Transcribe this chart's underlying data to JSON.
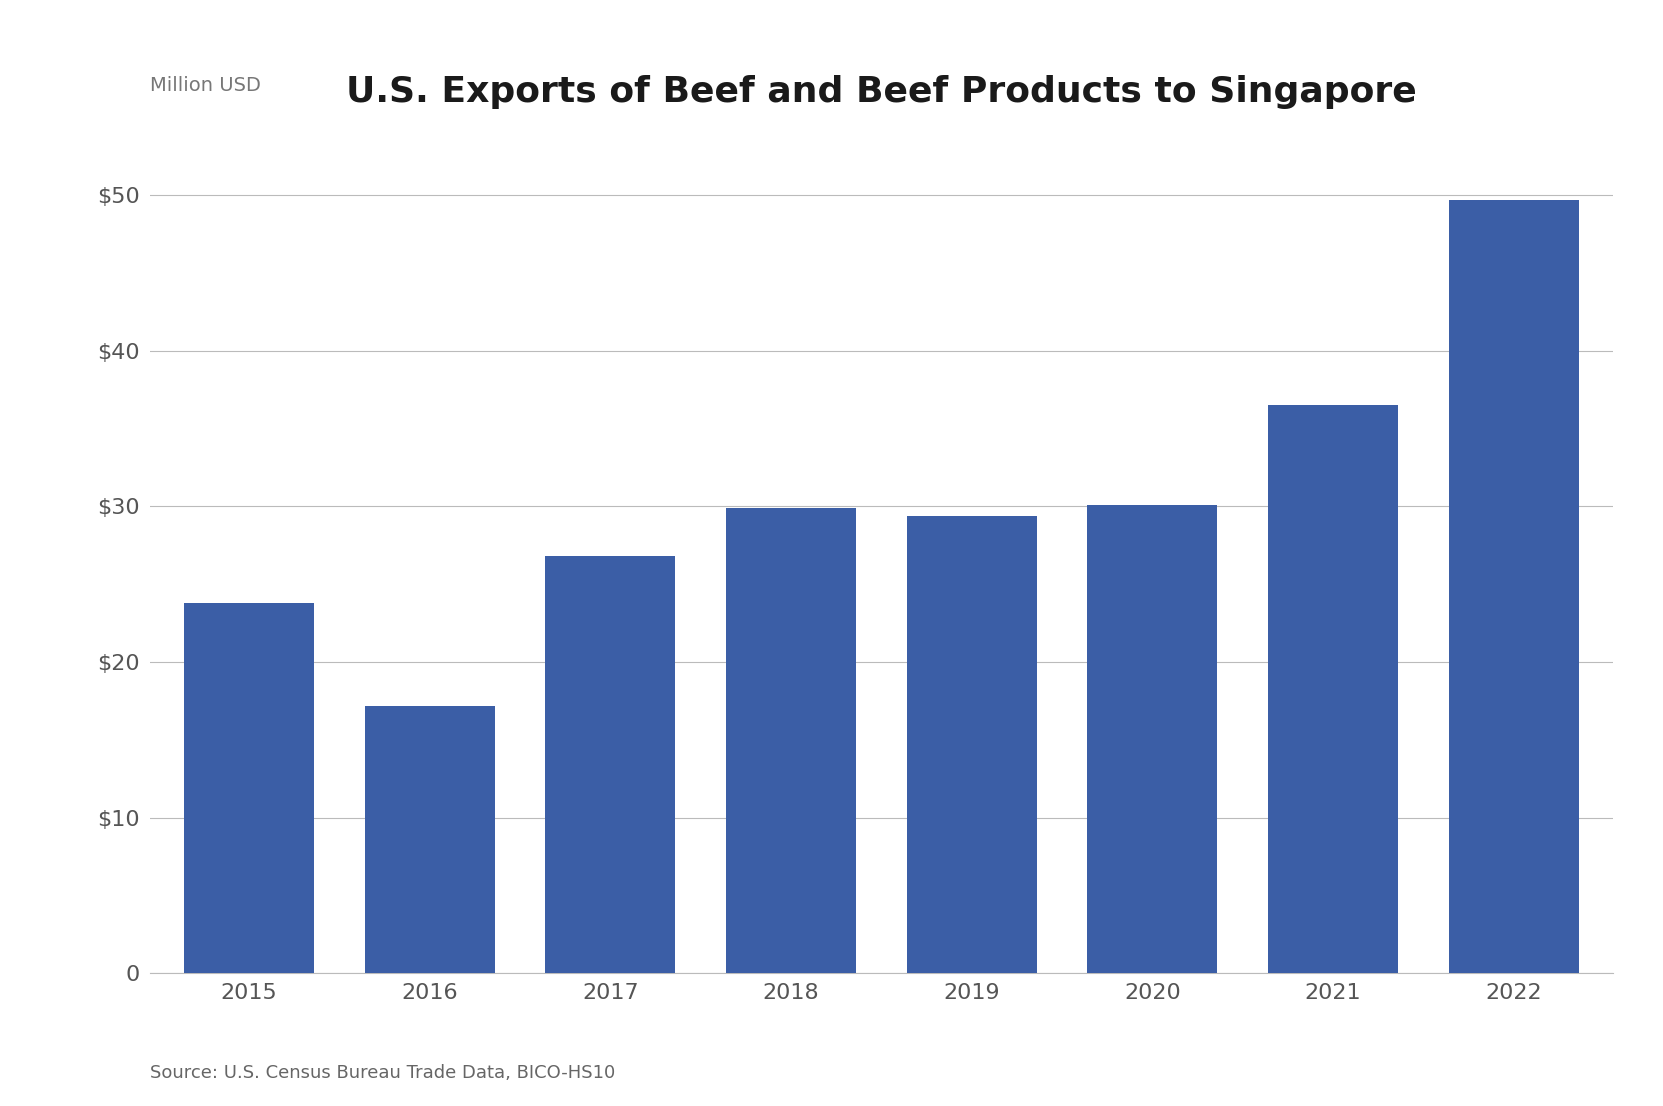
{
  "title": "U.S. Exports of Beef and Beef Products to Singapore",
  "ylabel": "Million USD",
  "source": "Source: U.S. Census Bureau Trade Data, BICO-HS10",
  "categories": [
    "2015",
    "2016",
    "2017",
    "2018",
    "2019",
    "2020",
    "2021",
    "2022"
  ],
  "values": [
    23.8,
    17.2,
    26.8,
    29.9,
    29.4,
    30.1,
    36.5,
    49.7
  ],
  "bar_color": "#3B5EA6",
  "background_color": "#ffffff",
  "ylim": [
    0,
    54
  ],
  "yticks": [
    0,
    10,
    20,
    30,
    40,
    50
  ],
  "title_fontsize": 26,
  "axis_label_fontsize": 14,
  "tick_fontsize": 16,
  "source_fontsize": 13,
  "grid_color": "#bbbbbb",
  "bar_width": 0.72
}
